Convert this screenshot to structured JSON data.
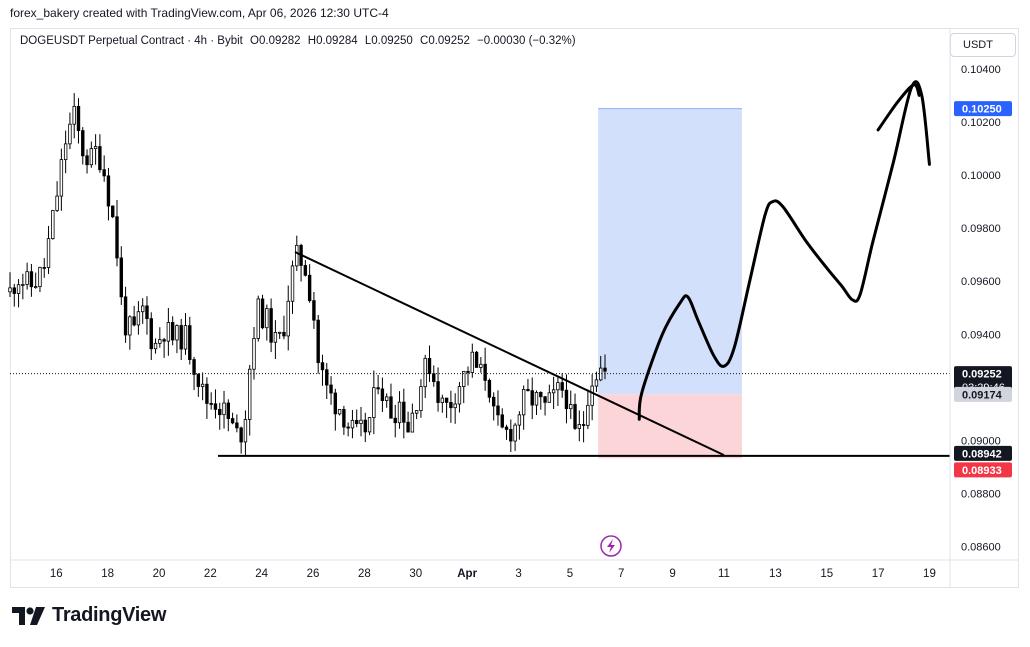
{
  "header": {
    "credit": "forex_bakery created with TradingView.com, Apr 06, 2026 12:30 UTC-4"
  },
  "legend": {
    "symbol": "DOGEUSDT Perpetual Contract · 4h · Bybit",
    "open": "O0.09282",
    "high": "H0.09284",
    "low": "L0.09250",
    "close": "C0.09252",
    "change": "−0.00030 (−0.32%)"
  },
  "toolbar": {
    "currency": "USDT"
  },
  "brand": {
    "name": "TradingView",
    "logo_icon": "tradingview-logo-icon"
  },
  "colors": {
    "bull": "#089981",
    "bear": "#f23645",
    "candle": "#000000",
    "target_zone": "#d3e0fb",
    "stop_zone": "#fbd5d8",
    "price_label": "#131722",
    "target_label": "#2962ff",
    "stop_label": "#f23645",
    "entry_label": "#d1d4dc"
  },
  "chart_data": {
    "type": "candlestick",
    "timeframe": "4h",
    "ylim": [
      0.0855,
      0.1055
    ],
    "y_ticks": [
      "0.10400",
      "0.10200",
      "0.10000",
      "0.09800",
      "0.09600",
      "0.09400",
      "0.09200",
      "0.09000",
      "0.08800",
      "0.08600"
    ],
    "x_ticks": [
      {
        "label": "16",
        "day": 16
      },
      {
        "label": "18",
        "day": 18
      },
      {
        "label": "20",
        "day": 20
      },
      {
        "label": "22",
        "day": 22
      },
      {
        "label": "24",
        "day": 24
      },
      {
        "label": "26",
        "day": 26
      },
      {
        "label": "28",
        "day": 28
      },
      {
        "label": "30",
        "day": 30
      },
      {
        "label": "Apr",
        "day": 32
      },
      {
        "label": "3",
        "day": 34
      },
      {
        "label": "5",
        "day": 36
      },
      {
        "label": "7",
        "day": 38
      },
      {
        "label": "9",
        "day": 40
      },
      {
        "label": "11",
        "day": 42
      },
      {
        "label": "13",
        "day": 44
      },
      {
        "label": "15",
        "day": 46
      },
      {
        "label": "17",
        "day": 48
      },
      {
        "label": "19",
        "day": 50
      }
    ],
    "x_day_range": [
      14.2,
      50.8
    ],
    "price_path": [
      [
        14.2,
        0.0956
      ],
      [
        14.5,
        0.0962
      ],
      [
        15.0,
        0.0958
      ],
      [
        15.5,
        0.0964
      ],
      [
        15.9,
        0.0985
      ],
      [
        16.1,
        0.0997
      ],
      [
        16.4,
        0.1015
      ],
      [
        16.7,
        0.1022
      ],
      [
        17.0,
        0.101
      ],
      [
        17.3,
        0.1005
      ],
      [
        17.6,
        0.101
      ],
      [
        17.9,
        0.1
      ],
      [
        18.3,
        0.0978
      ],
      [
        18.6,
        0.0945
      ],
      [
        19.0,
        0.094
      ],
      [
        19.4,
        0.095
      ],
      [
        19.8,
        0.0935
      ],
      [
        20.2,
        0.0942
      ],
      [
        20.6,
        0.0938
      ],
      [
        21.0,
        0.094
      ],
      [
        21.4,
        0.0928
      ],
      [
        21.8,
        0.0915
      ],
      [
        22.2,
        0.0915
      ],
      [
        22.6,
        0.091
      ],
      [
        23.0,
        0.0902
      ],
      [
        23.3,
        0.0904
      ],
      [
        23.5,
        0.0925
      ],
      [
        23.8,
        0.095
      ],
      [
        24.2,
        0.0945
      ],
      [
        24.6,
        0.0935
      ],
      [
        24.9,
        0.0945
      ],
      [
        25.1,
        0.096
      ],
      [
        25.4,
        0.097
      ],
      [
        25.7,
        0.0965
      ],
      [
        26.0,
        0.095
      ],
      [
        26.2,
        0.093
      ],
      [
        26.5,
        0.092
      ],
      [
        26.8,
        0.0915
      ],
      [
        27.1,
        0.0912
      ],
      [
        27.4,
        0.0905
      ],
      [
        27.7,
        0.0902
      ],
      [
        28.0,
        0.0904
      ],
      [
        28.3,
        0.091
      ],
      [
        28.5,
        0.0925
      ],
      [
        28.8,
        0.0915
      ],
      [
        29.1,
        0.091
      ],
      [
        29.4,
        0.0915
      ],
      [
        29.7,
        0.0905
      ],
      [
        30.0,
        0.0915
      ],
      [
        30.3,
        0.0925
      ],
      [
        30.5,
        0.093
      ],
      [
        30.8,
        0.092
      ],
      [
        31.1,
        0.0912
      ],
      [
        31.4,
        0.0915
      ],
      [
        31.6,
        0.092
      ],
      [
        31.9,
        0.0925
      ],
      [
        32.2,
        0.093
      ],
      [
        32.5,
        0.0925
      ],
      [
        32.8,
        0.0925
      ],
      [
        33.0,
        0.091
      ],
      [
        33.3,
        0.0903
      ],
      [
        33.6,
        0.0903
      ],
      [
        33.9,
        0.0906
      ],
      [
        34.1,
        0.0914
      ],
      [
        34.4,
        0.0916
      ],
      [
        34.7,
        0.0915
      ],
      [
        35.0,
        0.0912
      ],
      [
        35.3,
        0.0915
      ],
      [
        35.5,
        0.0918
      ],
      [
        35.8,
        0.092
      ],
      [
        36.0,
        0.091
      ],
      [
        36.2,
        0.0902
      ],
      [
        36.5,
        0.0905
      ],
      [
        36.7,
        0.0918
      ],
      [
        36.9,
        0.0925
      ],
      [
        37.2,
        0.0927
      ],
      [
        37.4,
        0.0925
      ]
    ],
    "descending_trendline": {
      "from": [
        25.3,
        0.0971
      ],
      "to": [
        42.0,
        0.08945
      ]
    },
    "support_line": {
      "price": 0.08942,
      "from_day": 22.3
    },
    "position": {
      "from_day": 37.1,
      "to_day": 42.7,
      "target": 0.1025,
      "entry": 0.09174,
      "stop": 0.08933
    },
    "projection": [
      [
        38.7,
        0.0908
      ],
      [
        38.8,
        0.0918
      ],
      [
        39.6,
        0.094
      ],
      [
        40.3,
        0.0952
      ],
      [
        40.6,
        0.0954
      ],
      [
        41.0,
        0.0945
      ],
      [
        41.6,
        0.0932
      ],
      [
        42.0,
        0.0928
      ],
      [
        42.4,
        0.0935
      ],
      [
        43.0,
        0.096
      ],
      [
        43.6,
        0.0985
      ],
      [
        43.9,
        0.099
      ],
      [
        44.3,
        0.0988
      ],
      [
        45.2,
        0.0975
      ],
      [
        46.0,
        0.0965
      ],
      [
        46.6,
        0.0958
      ],
      [
        47.0,
        0.0953
      ],
      [
        47.3,
        0.0955
      ],
      [
        47.8,
        0.0975
      ],
      [
        48.6,
        0.1005
      ],
      [
        49.3,
        0.1033
      ],
      [
        49.7,
        0.103
      ],
      [
        50.0,
        0.1004
      ]
    ],
    "projection_tail": [
      [
        48.0,
        0.1017
      ],
      [
        48.8,
        0.1028
      ],
      [
        49.4,
        0.1034
      ],
      [
        49.6,
        0.103
      ]
    ],
    "price_labels": [
      {
        "name": "current-price-label",
        "text": "0.09252",
        "price": 0.09252,
        "color": "#131722",
        "countdown": "03:29:46"
      },
      {
        "name": "entry-price-label",
        "text": "0.09174",
        "price": 0.09174,
        "color": "#d1d4dc"
      },
      {
        "name": "support-price-label",
        "text": "0.08942",
        "price": 0.08942,
        "color": "#131722"
      },
      {
        "name": "stop-price-label",
        "text": "0.08933",
        "price": 0.08933,
        "color": "#f23645"
      },
      {
        "name": "target-price-label",
        "text": "0.10250",
        "price": 0.1025,
        "color": "#2962ff"
      }
    ]
  }
}
